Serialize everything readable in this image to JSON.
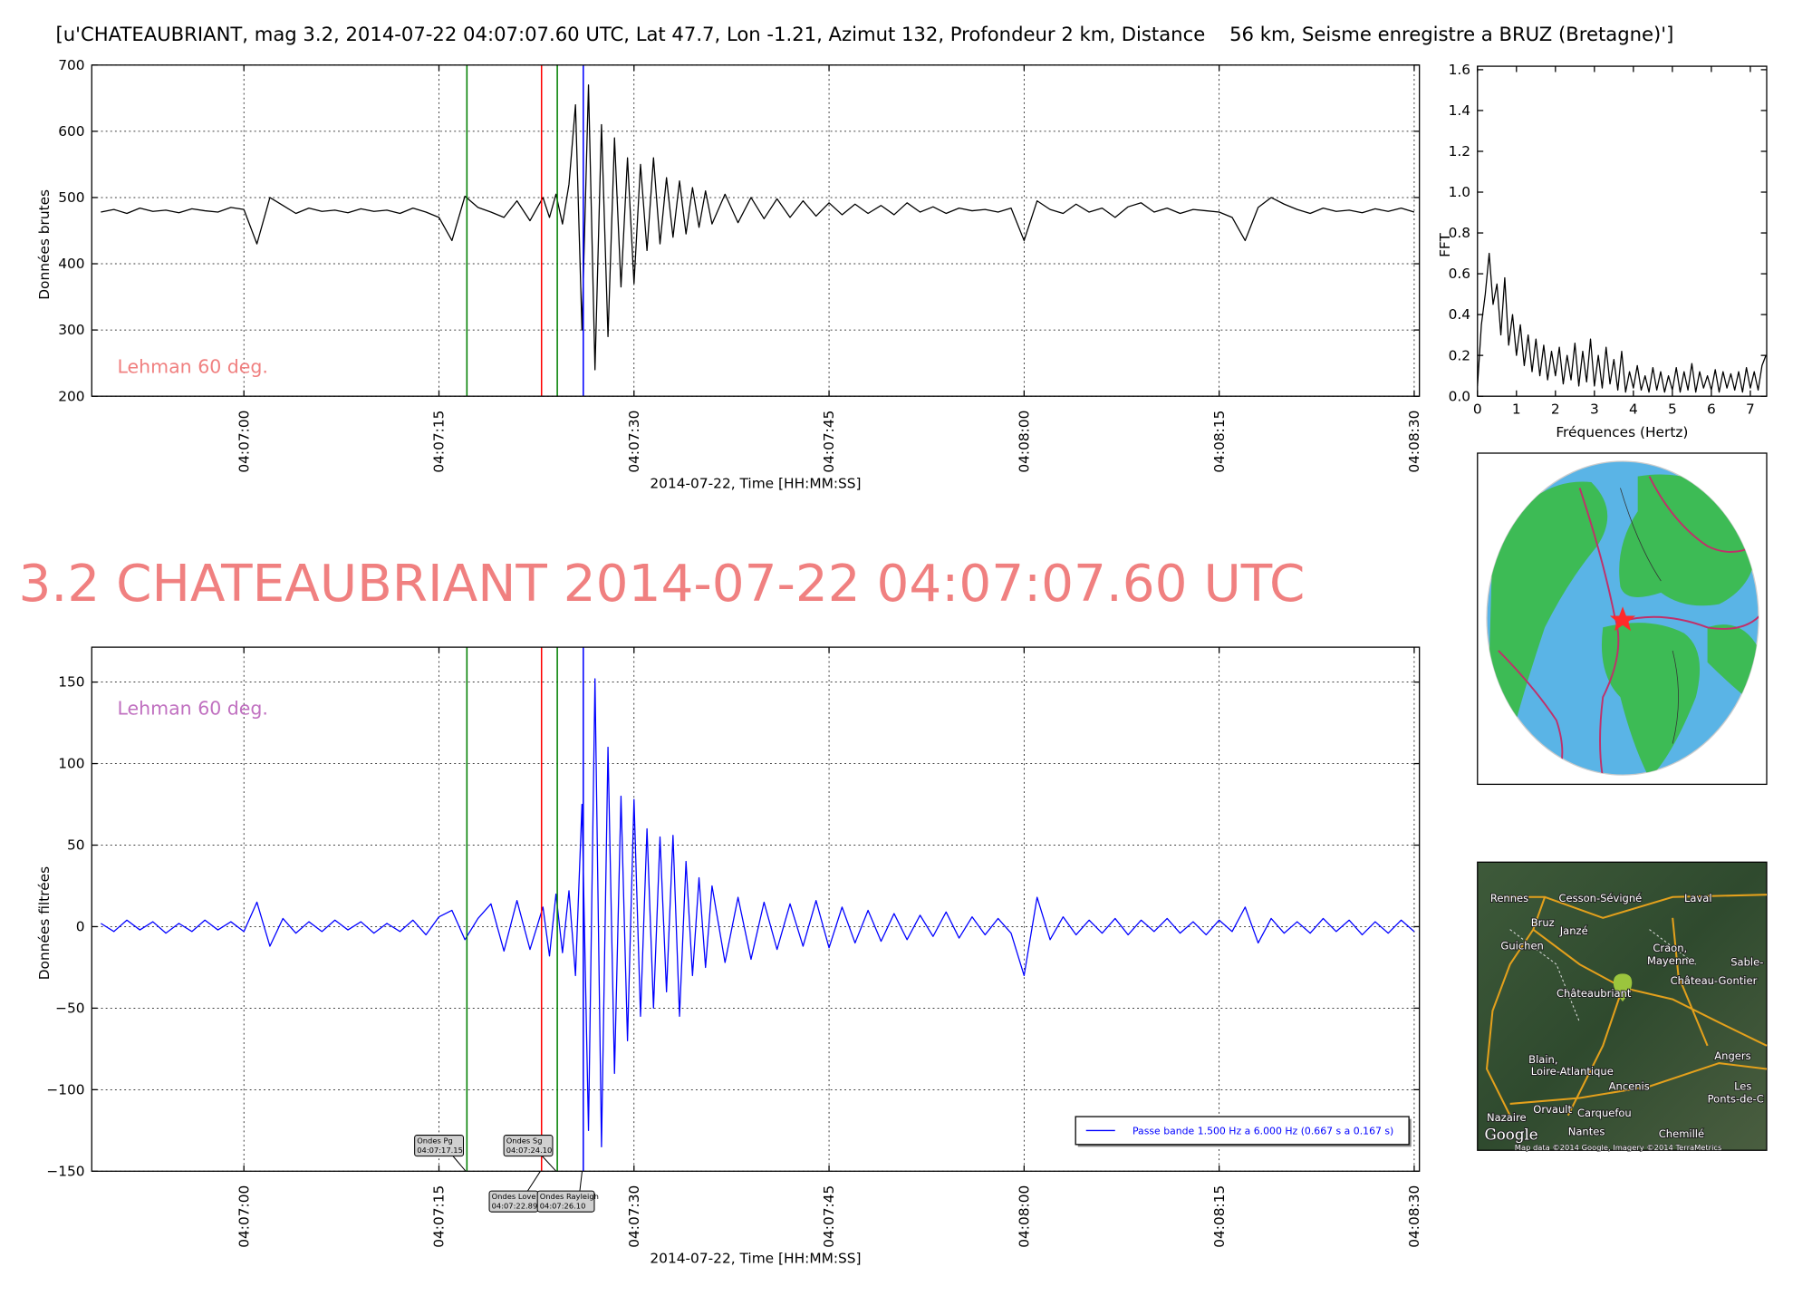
{
  "header": {
    "title": "[u'CHATEAUBRIANT, mag 3.2, 2014-07-22 04:07:07.60 UTC, Lat 47.7, Lon -1.21, Azimut 132, Profondeur 2 km, Distance    56 km, Seisme enregistre a BRUZ (Bretagne)']"
  },
  "headline": "3.2 CHATEAUBRIANT 2014-07-22 04:07:07.60 UTC",
  "chart_data": [
    {
      "type": "line",
      "ylabel": "Données brutes",
      "xlabel": "2014-07-22, Time [HH:MM:SS]",
      "annotation": "Lehman 60 deg.",
      "annotation_color": "#f08080",
      "x": [
        "04:06:49",
        "04:06:50",
        "04:06:51",
        "04:06:52",
        "04:06:53",
        "04:06:54",
        "04:06:55",
        "04:06:56",
        "04:06:57",
        "04:06:58",
        "04:06:59",
        "04:07:00",
        "04:07:01",
        "04:07:02",
        "04:07:03",
        "04:07:04",
        "04:07:05",
        "04:07:06",
        "04:07:07",
        "04:07:08",
        "04:07:09",
        "04:07:10",
        "04:07:11",
        "04:07:12",
        "04:07:13",
        "04:07:14",
        "04:07:15",
        "04:07:16",
        "04:07:17",
        "04:07:18",
        "04:07:19",
        "04:07:20",
        "04:07:21",
        "04:07:22",
        "04:07:23",
        "04:07:23.5",
        "04:07:24",
        "04:07:24.5",
        "04:07:25",
        "04:07:25.5",
        "04:07:26",
        "04:07:26.5",
        "04:07:27",
        "04:07:27.5",
        "04:07:28",
        "04:07:28.5",
        "04:07:29",
        "04:07:29.5",
        "04:07:30",
        "04:07:30.5",
        "04:07:31",
        "04:07:31.5",
        "04:07:32",
        "04:07:32.5",
        "04:07:33",
        "04:07:33.5",
        "04:07:34",
        "04:07:34.5",
        "04:07:35",
        "04:07:35.5",
        "04:07:36",
        "04:07:37",
        "04:07:38",
        "04:07:39",
        "04:07:40",
        "04:07:41",
        "04:07:42",
        "04:07:43",
        "04:07:44",
        "04:07:45",
        "04:07:46",
        "04:07:47",
        "04:07:48",
        "04:07:49",
        "04:07:50",
        "04:07:51",
        "04:07:52",
        "04:07:53",
        "04:07:54",
        "04:07:55",
        "04:07:56",
        "04:07:57",
        "04:07:58",
        "04:07:59",
        "04:08:00",
        "04:08:01",
        "04:08:02",
        "04:08:03",
        "04:08:04",
        "04:08:05",
        "04:08:06",
        "04:08:07",
        "04:08:08",
        "04:08:09",
        "04:08:10",
        "04:08:11",
        "04:08:12",
        "04:08:13",
        "04:08:14",
        "04:08:15",
        "04:08:16",
        "04:08:17",
        "04:08:18",
        "04:08:19",
        "04:08:20",
        "04:08:21",
        "04:08:22",
        "04:08:23",
        "04:08:24",
        "04:08:25",
        "04:08:26",
        "04:08:27",
        "04:08:28",
        "04:08:29",
        "04:08:30"
      ],
      "series": [
        {
          "color": "#000000",
          "values": [
            478,
            482,
            476,
            484,
            479,
            481,
            477,
            483,
            480,
            478,
            485,
            482,
            430,
            500,
            488,
            476,
            484,
            479,
            481,
            477,
            483,
            479,
            481,
            476,
            484,
            478,
            470,
            435,
            502,
            485,
            478,
            470,
            495,
            465,
            500,
            470,
            505,
            460,
            520,
            640,
            300,
            670,
            240,
            610,
            290,
            590,
            365,
            560,
            370,
            550,
            420,
            560,
            430,
            530,
            440,
            525,
            445,
            515,
            455,
            510,
            460,
            505,
            462,
            500,
            468,
            498,
            470,
            495,
            472,
            492,
            474,
            490,
            476,
            488,
            474,
            492,
            478,
            486,
            476,
            484,
            480,
            482,
            478,
            484,
            435,
            495,
            482,
            476,
            490,
            478,
            484,
            470,
            486,
            492,
            478,
            484,
            476,
            482,
            480,
            478,
            470,
            435,
            485,
            500,
            490,
            482,
            476,
            484,
            479,
            481,
            477,
            483,
            479,
            484,
            478
          ]
        }
      ],
      "xlim": [
        "04:06:48.3",
        "04:08:30.4"
      ],
      "ylim": [
        200,
        700
      ],
      "yticks": [
        200,
        300,
        400,
        500,
        600,
        700
      ],
      "xticks": [
        "04:07:00",
        "04:07:15",
        "04:07:30",
        "04:07:45",
        "04:08:00",
        "04:08:15",
        "04:08:30"
      ],
      "grid": true,
      "markers": [
        {
          "time": "04:07:17.15",
          "color": "#008000"
        },
        {
          "time": "04:07:22.89",
          "color": "#ff0000"
        },
        {
          "time": "04:07:24.10",
          "color": "#008000"
        },
        {
          "time": "04:07:26.10",
          "color": "#0000ff"
        }
      ]
    },
    {
      "type": "line",
      "ylabel": "Données filtrées",
      "xlabel": "2014-07-22, Time [HH:MM:SS]",
      "annotation": "Lehman 60 deg.",
      "annotation_color": "#c070c0",
      "x": [
        "04:06:49",
        "04:06:50",
        "04:06:51",
        "04:06:52",
        "04:06:53",
        "04:06:54",
        "04:06:55",
        "04:06:56",
        "04:06:57",
        "04:06:58",
        "04:06:59",
        "04:07:00",
        "04:07:01",
        "04:07:02",
        "04:07:03",
        "04:07:04",
        "04:07:05",
        "04:07:06",
        "04:07:07",
        "04:07:08",
        "04:07:09",
        "04:07:10",
        "04:07:11",
        "04:07:12",
        "04:07:13",
        "04:07:14",
        "04:07:15",
        "04:07:16",
        "04:07:17",
        "04:07:18",
        "04:07:19",
        "04:07:20",
        "04:07:21",
        "04:07:22",
        "04:07:23",
        "04:07:23.5",
        "04:07:24",
        "04:07:24.5",
        "04:07:25",
        "04:07:25.5",
        "04:07:26",
        "04:07:26.5",
        "04:07:27",
        "04:07:27.5",
        "04:07:28",
        "04:07:28.5",
        "04:07:29",
        "04:07:29.5",
        "04:07:30",
        "04:07:30.5",
        "04:07:31",
        "04:07:31.5",
        "04:07:32",
        "04:07:32.5",
        "04:07:33",
        "04:07:33.5",
        "04:07:34",
        "04:07:34.5",
        "04:07:35",
        "04:07:35.5",
        "04:07:36",
        "04:07:37",
        "04:07:38",
        "04:07:39",
        "04:07:40",
        "04:07:41",
        "04:07:42",
        "04:07:43",
        "04:07:44",
        "04:07:45",
        "04:07:46",
        "04:07:47",
        "04:07:48",
        "04:07:49",
        "04:07:50",
        "04:07:51",
        "04:07:52",
        "04:07:53",
        "04:07:54",
        "04:07:55",
        "04:07:56",
        "04:07:57",
        "04:07:58",
        "04:07:59",
        "04:08:00",
        "04:08:01",
        "04:08:02",
        "04:08:03",
        "04:08:04",
        "04:08:05",
        "04:08:06",
        "04:08:07",
        "04:08:08",
        "04:08:09",
        "04:08:10",
        "04:08:11",
        "04:08:12",
        "04:08:13",
        "04:08:14",
        "04:08:15",
        "04:08:16",
        "04:08:17",
        "04:08:18",
        "04:08:19",
        "04:08:20",
        "04:08:21",
        "04:08:22",
        "04:08:23",
        "04:08:24",
        "04:08:25",
        "04:08:26",
        "04:08:27",
        "04:08:28",
        "04:08:29",
        "04:08:30"
      ],
      "series": [
        {
          "name": "Passe bande 1.500 Hz a 6.000 Hz (0.667 s a 0.167 s)",
          "color": "#0000ff",
          "values": [
            2,
            -3,
            4,
            -2,
            3,
            -4,
            2,
            -3,
            4,
            -2,
            3,
            -3,
            15,
            -12,
            5,
            -4,
            3,
            -3,
            4,
            -2,
            3,
            -4,
            2,
            -3,
            4,
            -5,
            6,
            10,
            -8,
            5,
            14,
            -15,
            16,
            -14,
            12,
            -18,
            20,
            -16,
            22,
            -30,
            75,
            -125,
            152,
            -135,
            110,
            -90,
            80,
            -70,
            78,
            -55,
            60,
            -50,
            55,
            -40,
            56,
            -55,
            40,
            -30,
            30,
            -25,
            25,
            -22,
            18,
            -20,
            15,
            -14,
            14,
            -12,
            16,
            -13,
            12,
            -10,
            10,
            -9,
            8,
            -8,
            7,
            -6,
            9,
            -7,
            6,
            -5,
            5,
            -4,
            -30,
            18,
            -8,
            6,
            -5,
            4,
            -4,
            5,
            -5,
            4,
            -3,
            5,
            -4,
            3,
            -5,
            4,
            -3,
            12,
            -10,
            5,
            -4,
            3,
            -4,
            5,
            -3,
            4,
            -5,
            3,
            -4,
            4,
            -3
          ]
        }
      ],
      "xlim": [
        "04:06:48.3",
        "04:08:30.4"
      ],
      "ylim": [
        -150,
        171.4
      ],
      "yticks": [
        {
          "value": -150,
          "label": "−150"
        },
        {
          "value": -100,
          "label": "−100"
        },
        {
          "value": -50,
          "label": "−50"
        },
        0,
        50,
        100,
        150
      ],
      "xticks": [
        "04:07:00",
        "04:07:15",
        "04:07:30",
        "04:07:45",
        "04:08:00",
        "04:08:15",
        "04:08:30"
      ],
      "grid": true,
      "legend": "lower right",
      "markers": [
        {
          "label": "Ondes Pg",
          "time": "04:07:17.15",
          "color": "#008000"
        },
        {
          "label": "Ondes Love",
          "time": "04:07:22.89",
          "color": "#ff0000"
        },
        {
          "label": "Ondes Sg",
          "time": "04:07:24.10",
          "color": "#008000"
        },
        {
          "label": "Ondes Rayleigh",
          "time": "04:07:26.10",
          "color": "#0000ff"
        }
      ]
    },
    {
      "type": "line",
      "ylabel": "FFT",
      "xlabel": "Fréquences (Hertz)",
      "x": [
        0,
        0.1,
        0.2,
        0.3,
        0.4,
        0.5,
        0.6,
        0.7,
        0.8,
        0.9,
        1.0,
        1.1,
        1.2,
        1.3,
        1.4,
        1.5,
        1.6,
        1.7,
        1.8,
        1.9,
        2.0,
        2.1,
        2.2,
        2.3,
        2.4,
        2.5,
        2.6,
        2.7,
        2.8,
        2.9,
        3.0,
        3.1,
        3.2,
        3.3,
        3.4,
        3.5,
        3.6,
        3.7,
        3.8,
        3.9,
        4.0,
        4.1,
        4.2,
        4.3,
        4.4,
        4.5,
        4.6,
        4.7,
        4.8,
        4.9,
        5.0,
        5.1,
        5.2,
        5.3,
        5.4,
        5.5,
        5.6,
        5.7,
        5.8,
        5.9,
        6.0,
        6.1,
        6.2,
        6.3,
        6.4,
        6.5,
        6.6,
        6.7,
        6.8,
        6.9,
        7.0,
        7.1,
        7.2,
        7.3,
        7.4
      ],
      "series": [
        {
          "color": "#000000",
          "values": [
            0.05,
            0.35,
            0.5,
            0.7,
            0.45,
            0.55,
            0.3,
            0.58,
            0.25,
            0.4,
            0.2,
            0.35,
            0.15,
            0.3,
            0.12,
            0.28,
            0.1,
            0.25,
            0.08,
            0.22,
            0.1,
            0.24,
            0.06,
            0.2,
            0.08,
            0.26,
            0.05,
            0.22,
            0.07,
            0.28,
            0.05,
            0.2,
            0.04,
            0.24,
            0.06,
            0.18,
            0.03,
            0.22,
            0.02,
            0.12,
            0.04,
            0.15,
            0.03,
            0.1,
            0.02,
            0.14,
            0.03,
            0.12,
            0.02,
            0.1,
            0.03,
            0.14,
            0.02,
            0.12,
            0.03,
            0.16,
            0.02,
            0.12,
            0.04,
            0.1,
            0.03,
            0.13,
            0.02,
            0.12,
            0.04,
            0.11,
            0.03,
            0.12,
            0.02,
            0.14,
            0.04,
            0.12,
            0.03,
            0.15,
            0.2
          ]
        }
      ],
      "xlim": [
        0,
        7.42
      ],
      "ylim": [
        0,
        1.617
      ],
      "xticks": [
        0,
        1,
        2,
        3,
        4,
        5,
        6,
        7
      ],
      "yticks": [
        {
          "value": 0,
          "label": "0.0"
        },
        0.2,
        0.4,
        0.6,
        0.8,
        {
          "value": 1,
          "label": "1.0"
        },
        1.2,
        1.4,
        1.6
      ],
      "grid": false
    }
  ],
  "map": {
    "labels": [
      "Rennes",
      "Cesson-Sévigné",
      "Laval",
      "Bruz",
      "Janzé",
      "Guichen",
      "Craon,",
      "Mayenne",
      "Château-Gontier",
      "Sable-",
      "Châteaubriant",
      "Blain,",
      "Loire-Atlantique",
      "Ancenis",
      "Angers",
      "Les",
      "Ponts-de-C",
      "Orvault",
      "Carquefou",
      "Nazaire",
      "Nantes",
      "Chemillé",
      "Google",
      "Map data ©2014 Google, Imagery ©2014 TerraMetrics"
    ]
  }
}
